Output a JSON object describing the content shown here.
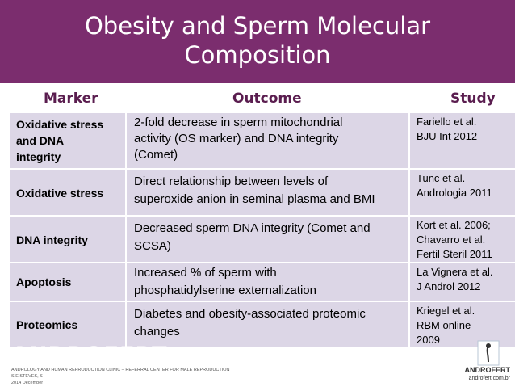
{
  "title": {
    "line1": "Obesity and Sperm Molecular",
    "line2": "Composition"
  },
  "headers": {
    "marker": "Marker",
    "outcome": "Outcome",
    "study": "Study"
  },
  "rows": [
    {
      "marker": [
        "Oxidative stress",
        "and DNA",
        "integrity"
      ],
      "outcome": [
        "2-fold decrease in sperm mitochondrial",
        "activity (OS marker) and DNA integrity",
        "(Comet)"
      ],
      "study": [
        "Fariello et al.",
        "BJU Int 2012"
      ]
    },
    {
      "marker": [
        "Oxidative stress"
      ],
      "outcome": [
        "Direct relationship between levels of",
        "superoxide anion in seminal plasma and BMI"
      ],
      "study": [
        "Tunc et al.",
        "Andrologia 2011"
      ]
    },
    {
      "marker": [
        "DNA integrity"
      ],
      "outcome": [
        "Decreased sperm DNA integrity (Comet and",
        "SCSA)"
      ],
      "study": [
        "Kort et al. 2006;",
        "Chavarro et al.",
        "Fertil Steril 2011"
      ]
    },
    {
      "marker": [
        "Apoptosis"
      ],
      "outcome": [
        "Increased % of sperm with",
        "phosphatidylserine externalization"
      ],
      "study": [
        "La Vignera et al.",
        "J Androl 2012"
      ]
    },
    {
      "marker": [
        "Proteomics"
      ],
      "outcome": [
        "Diabetes and obesity-associated proteomic",
        "changes"
      ],
      "study": [
        "Kriegel et al.",
        "RBM online",
        "2009"
      ]
    }
  ],
  "footer": {
    "brand": "ANDROFERT",
    "line1": "ANDROLOGY AND HUMAN REPRODUCTION CLINIC – REFERRAL CENTER FOR MALE REPRODUCTION",
    "line2": "S E STEVES, S",
    "line3": "2014 December",
    "logo_name": "ANDROFERT",
    "logo_url": "androfert.com.br"
  },
  "colors": {
    "title_band": "#7b2d6e",
    "row_fill": "#dcd6e6",
    "header_text": "#5a1d4f"
  }
}
